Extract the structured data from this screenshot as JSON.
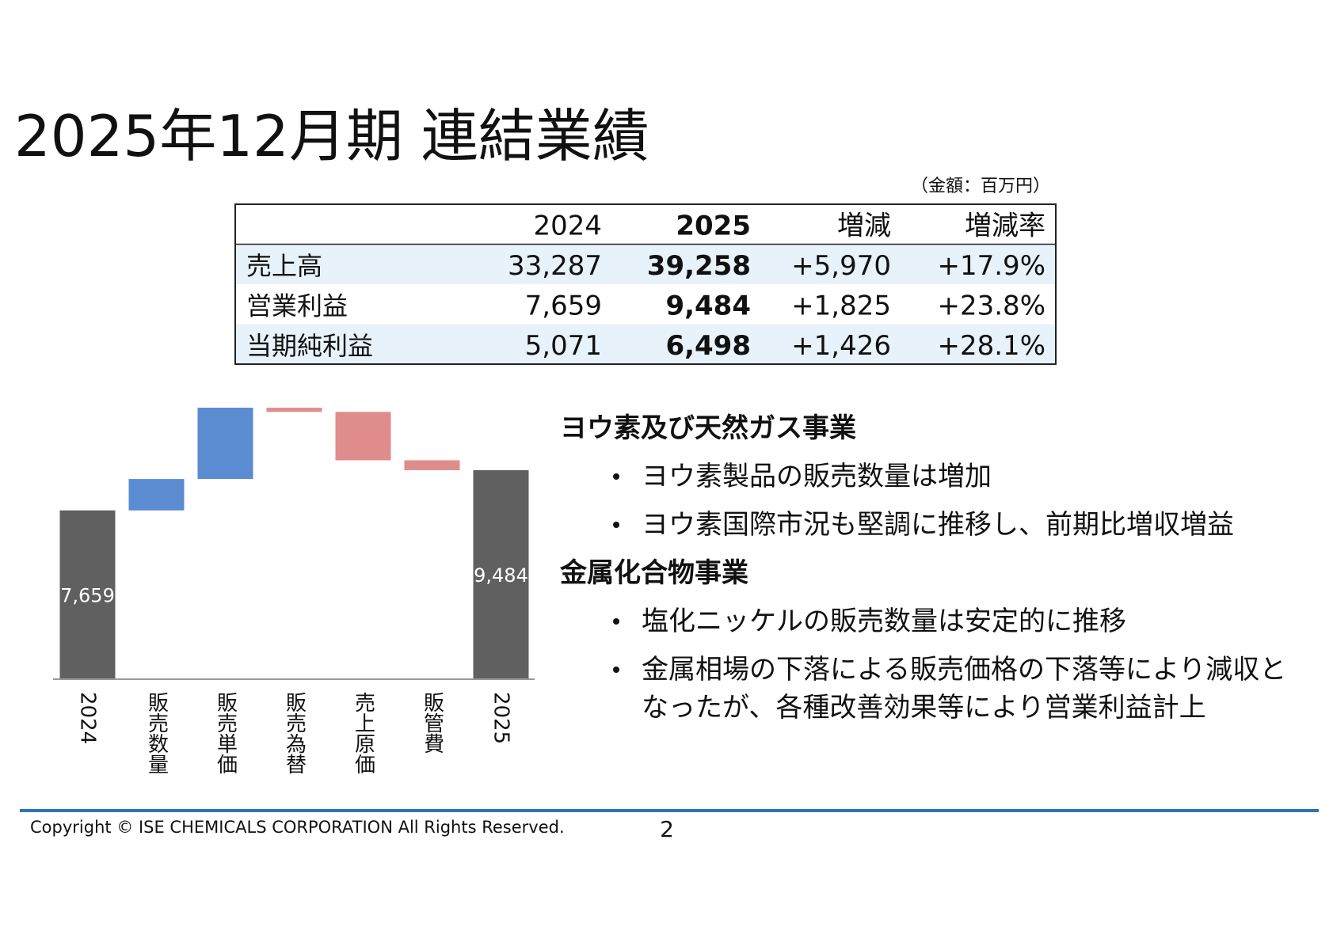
{
  "title": "2025年12月期 連結業績",
  "unit_note": "（金額：百万円）",
  "table": {
    "columns": [
      "2024",
      "2025",
      "増減",
      "増減率"
    ],
    "rows": [
      {
        "label": "売上高",
        "cells": [
          "33,287",
          "39,258",
          "+5,970",
          "+17.9%"
        ]
      },
      {
        "label": "営業利益",
        "cells": [
          "7,659",
          "9,484",
          "+1,825",
          "+23.8%"
        ]
      },
      {
        "label": "当期純利益",
        "cells": [
          "5,071",
          "6,498",
          "+1,426",
          "+28.1%"
        ]
      }
    ]
  },
  "chart_data": {
    "type": "waterfall",
    "categories": [
      "2024",
      "販売数量",
      "販売単価",
      "販売為替",
      "売上原価",
      "販管費",
      "2025"
    ],
    "values": [
      7659,
      1425,
      3234,
      -190,
      -2195,
      -449,
      9484
    ],
    "value_labels": [
      "7,659",
      null,
      null,
      null,
      null,
      null,
      "9,484"
    ],
    "measure": [
      "absolute",
      "relative",
      "relative",
      "relative",
      "relative",
      "relative",
      "absolute"
    ],
    "color_total": "#606060",
    "color_increase": "#5b8bd0",
    "color_decrease": "#e08c8c",
    "ylim": [
      0,
      12500
    ]
  },
  "sections": [
    {
      "heading": "ヨウ素及び天然ガス事業",
      "bullets": [
        [
          "ヨウ素製品の販売数量は増加"
        ],
        [
          "ヨウ素国際市況も堅調に推移し、前期比増収増益"
        ]
      ]
    },
    {
      "heading": "金属化合物事業",
      "bullets": [
        [
          "塩化ニッケルの販売数量は安定的に推移"
        ],
        [
          "金属相場の下落による販売価格の下落等により減収と",
          "なったが、各種改善効果等により営業利益計上"
        ]
      ]
    }
  ],
  "footer": {
    "copyright": "Copyright © ISE CHEMICALS CORPORATION  All Rights Reserved.",
    "page": "2"
  }
}
